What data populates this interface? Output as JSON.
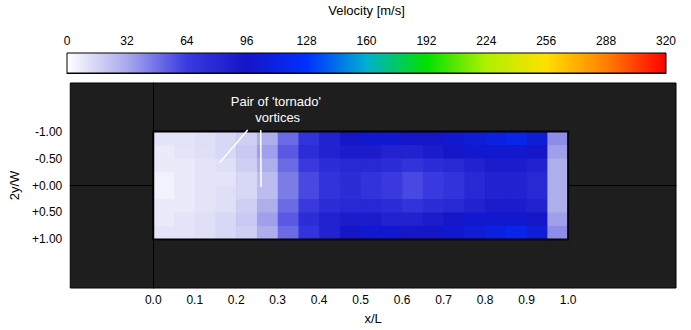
{
  "chart_data": {
    "type": "heatmap",
    "xlabel": "x/L",
    "ylabel": "2y/W",
    "xlim": [
      -0.2,
      1.26
    ],
    "xticks": [
      {
        "value": 0,
        "label": "0.0"
      },
      0.1,
      0.2,
      0.3,
      0.4,
      0.5,
      0.6,
      0.7,
      0.8,
      0.9,
      {
        "value": 1,
        "label": "1.0"
      }
    ],
    "ylim": [
      1.9,
      -1.9
    ],
    "yticks": [
      {
        "value": -1,
        "label": "-1.00"
      },
      {
        "value": -0.5,
        "label": "-0.50"
      },
      {
        "value": 0,
        "label": "+0.00"
      },
      {
        "value": 0.5,
        "label": "+0.50"
      },
      {
        "value": 1,
        "label": "+1.00"
      }
    ],
    "cells": {
      "x_edges": [
        0,
        0.05,
        0.1,
        0.15,
        0.2,
        0.25,
        0.3,
        0.35,
        0.4,
        0.45,
        0.5,
        0.55,
        0.6,
        0.65,
        0.7,
        0.75,
        0.8,
        0.85,
        0.9,
        0.95,
        1
      ],
      "y_edges": [
        -1,
        -0.75,
        -0.5,
        -0.25,
        0,
        0.25,
        0.5,
        0.75,
        1
      ],
      "values": [
        [
          10,
          10,
          12,
          15,
          18,
          30,
          50,
          70,
          85,
          95,
          100,
          100,
          95,
          95,
          100,
          105,
          110,
          115,
          105,
          40
        ],
        [
          8,
          10,
          12,
          15,
          20,
          35,
          55,
          75,
          85,
          90,
          90,
          85,
          85,
          90,
          95,
          100,
          100,
          100,
          95,
          35
        ],
        [
          8,
          8,
          10,
          12,
          18,
          30,
          50,
          65,
          75,
          80,
          80,
          75,
          70,
          75,
          80,
          85,
          90,
          90,
          85,
          30
        ],
        [
          5,
          8,
          10,
          10,
          15,
          25,
          45,
          60,
          70,
          75,
          70,
          65,
          60,
          65,
          70,
          80,
          85,
          85,
          80,
          30
        ],
        [
          5,
          8,
          10,
          12,
          15,
          25,
          45,
          60,
          70,
          75,
          70,
          65,
          60,
          65,
          70,
          80,
          85,
          85,
          80,
          30
        ],
        [
          8,
          8,
          10,
          12,
          18,
          30,
          50,
          65,
          75,
          80,
          80,
          75,
          70,
          75,
          80,
          85,
          90,
          90,
          85,
          30
        ],
        [
          8,
          10,
          12,
          15,
          20,
          35,
          55,
          75,
          85,
          90,
          90,
          85,
          85,
          90,
          95,
          100,
          100,
          100,
          95,
          35
        ],
        [
          10,
          10,
          12,
          15,
          18,
          30,
          50,
          70,
          85,
          95,
          100,
          100,
          95,
          95,
          100,
          105,
          110,
          115,
          105,
          40
        ]
      ]
    },
    "colorbar": {
      "label": "Velocity [m/s]",
      "range": [
        0,
        320
      ],
      "ticks": [
        0,
        32,
        64,
        96,
        128,
        160,
        192,
        224,
        256,
        288,
        320
      ]
    },
    "annotations": [
      {
        "text": "Pair of 'tornado' vortices",
        "x": 0.3,
        "y": -1.4,
        "points": [
          [
            0.16,
            -0.42
          ],
          [
            0.26,
            0.03
          ]
        ]
      }
    ]
  }
}
